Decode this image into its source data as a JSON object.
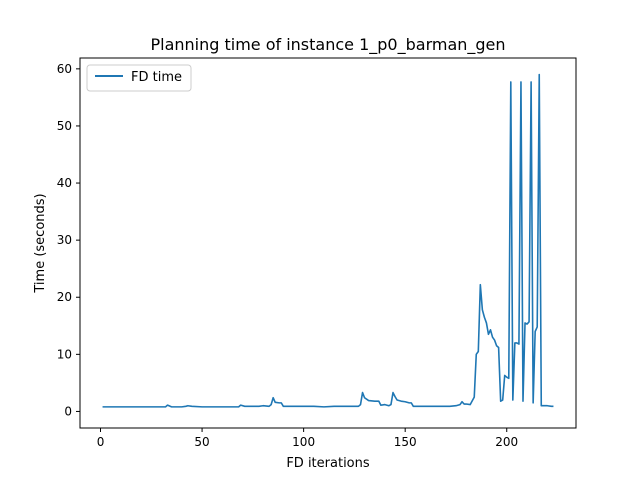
{
  "chart_data": {
    "type": "line",
    "title": "Planning time of instance 1_p0_barman_gen",
    "xlabel": "FD iterations",
    "ylabel": "Time (seconds)",
    "xlim": [
      -10.1,
      234.1
    ],
    "ylim": [
      -2.9,
      61.9
    ],
    "xticks": [
      0,
      50,
      100,
      150,
      200
    ],
    "yticks": [
      0,
      10,
      20,
      30,
      40,
      50,
      60
    ],
    "xtick_labels": [
      "0",
      "50",
      "100",
      "150",
      "200"
    ],
    "ytick_labels": [
      "0",
      "10",
      "20",
      "30",
      "40",
      "50",
      "60"
    ],
    "grid": false,
    "legend_position": "upper-left",
    "series": [
      {
        "name": "FD time",
        "color": "#1f77b4",
        "x": [
          1,
          5,
          10,
          15,
          20,
          25,
          30,
          32,
          33,
          35,
          38,
          40,
          42,
          43,
          45,
          50,
          55,
          60,
          65,
          68,
          69,
          71,
          75,
          78,
          80,
          83,
          84,
          85,
          86,
          88,
          89,
          90,
          95,
          100,
          105,
          110,
          115,
          120,
          125,
          127,
          128,
          129,
          130,
          132,
          135,
          137,
          138,
          140,
          142,
          143,
          144,
          145,
          146,
          148,
          150,
          152,
          153,
          154,
          155,
          158,
          160,
          165,
          170,
          172,
          175,
          177,
          178,
          179,
          180,
          182,
          184,
          185,
          186,
          187,
          188,
          189,
          190,
          191,
          192,
          193,
          194,
          195,
          196,
          197,
          198,
          199,
          200,
          201,
          202,
          203,
          204,
          205,
          206,
          207,
          208,
          209,
          210,
          211,
          212,
          213,
          214,
          215,
          216,
          217,
          218,
          220,
          222,
          223
        ],
        "y": [
          0.8,
          0.8,
          0.8,
          0.8,
          0.8,
          0.8,
          0.8,
          0.8,
          1.1,
          0.8,
          0.8,
          0.8,
          0.9,
          1.0,
          0.9,
          0.8,
          0.8,
          0.8,
          0.8,
          0.8,
          1.1,
          0.9,
          0.9,
          0.9,
          1.0,
          0.9,
          1.2,
          2.4,
          1.6,
          1.5,
          1.5,
          0.9,
          0.9,
          0.9,
          0.9,
          0.8,
          0.9,
          0.9,
          0.9,
          0.9,
          1.2,
          3.3,
          2.4,
          1.9,
          1.8,
          1.8,
          1.1,
          1.2,
          1.0,
          1.2,
          3.3,
          2.6,
          2.0,
          1.8,
          1.7,
          1.5,
          1.5,
          0.9,
          0.9,
          0.9,
          0.9,
          0.9,
          0.9,
          0.9,
          1.0,
          1.2,
          1.7,
          1.3,
          1.3,
          1.2,
          2.5,
          10.0,
          10.5,
          22.2,
          17.8,
          16.5,
          15.5,
          13.5,
          14.3,
          13.0,
          12.5,
          11.5,
          11.2,
          1.8,
          2.0,
          6.3,
          6.0,
          5.8,
          57.7,
          2.0,
          12.0,
          12.0,
          11.8,
          57.7,
          1.8,
          15.5,
          15.3,
          15.7,
          57.7,
          1.5,
          14.0,
          14.8,
          59.0,
          1.0,
          1.0,
          1.0,
          0.9,
          0.9
        ]
      }
    ]
  }
}
